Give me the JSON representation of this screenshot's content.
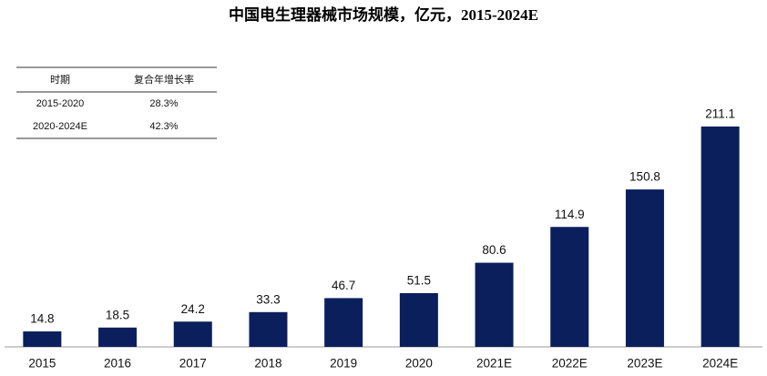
{
  "chart_data": {
    "type": "bar",
    "title": "中国电生理器械市场规模，亿元，2015-2024E",
    "categories": [
      "2015",
      "2016",
      "2017",
      "2018",
      "2019",
      "2020",
      "2021E",
      "2022E",
      "2023E",
      "2024E"
    ],
    "values": [
      14.8,
      18.5,
      24.2,
      33.3,
      46.7,
      51.5,
      80.6,
      114.9,
      150.8,
      211.1
    ],
    "color": "#0a1f5c",
    "ylim": [
      0,
      230
    ]
  },
  "table": {
    "header": [
      "时期",
      "复合年增长率"
    ],
    "rows": [
      [
        "2015-2020",
        "28.3%"
      ],
      [
        "2020-2024E",
        "42.3%"
      ]
    ]
  }
}
